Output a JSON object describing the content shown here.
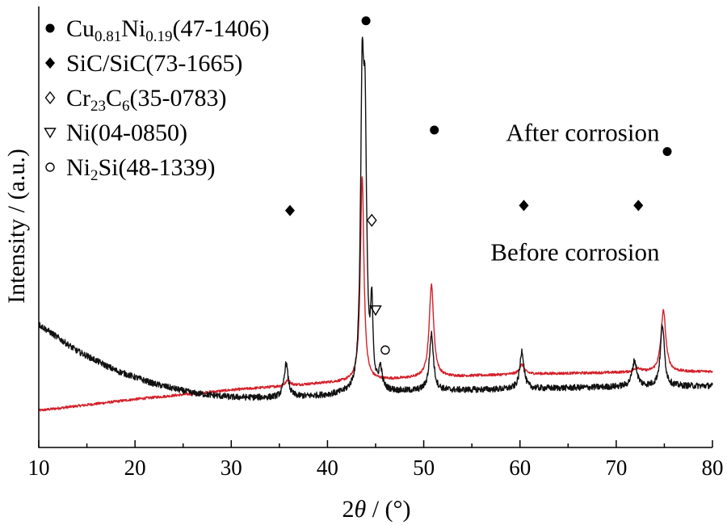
{
  "chart_data": {
    "type": "line",
    "xlabel_main": "2",
    "xlabel_theta": "θ",
    "xlabel_rest": " / (°)",
    "ylabel": "Intensity / (a.u.)",
    "xlim": [
      10,
      80
    ],
    "x_ticks": [
      10,
      20,
      30,
      40,
      50,
      60,
      70,
      80
    ],
    "grid": false,
    "legend_position": "top-left",
    "legend": [
      {
        "symbol": "filled-circle",
        "parts": [
          [
            "Cu",
            ""
          ],
          [
            "0.81",
            "sub"
          ],
          [
            "Ni",
            ""
          ],
          [
            "0.19",
            "sub"
          ],
          [
            "(47-1406)",
            ""
          ]
        ]
      },
      {
        "symbol": "filled-diamond",
        "parts": [
          [
            "SiC/SiC(73-1665)",
            ""
          ]
        ]
      },
      {
        "symbol": "open-diamond",
        "parts": [
          [
            "Cr",
            ""
          ],
          [
            "23",
            "sub"
          ],
          [
            "C",
            ""
          ],
          [
            "6",
            "sub"
          ],
          [
            "(35-0783)",
            ""
          ]
        ]
      },
      {
        "symbol": "open-triangle-down",
        "parts": [
          [
            "Ni(04-0850)",
            ""
          ]
        ]
      },
      {
        "symbol": "open-circle",
        "parts": [
          [
            "Ni",
            ""
          ],
          [
            "2",
            "sub"
          ],
          [
            "Si(48-1339)",
            ""
          ]
        ]
      }
    ],
    "series": [
      {
        "name": "After corrosion",
        "color": "#d4202a",
        "baseline": [
          [
            10,
            72
          ],
          [
            20,
            94
          ],
          [
            30,
            112
          ],
          [
            40,
            126
          ],
          [
            50,
            136
          ],
          [
            60,
            143
          ],
          [
            70,
            146
          ],
          [
            80,
            148
          ]
        ],
        "peaks": [
          {
            "x": 35.9,
            "height": 12,
            "width": 0.25
          },
          {
            "x": 43.6,
            "height": 400,
            "width": 0.22
          },
          {
            "x": 50.8,
            "height": 180,
            "width": 0.28
          },
          {
            "x": 60.2,
            "height": 18,
            "width": 0.3
          },
          {
            "x": 72.2,
            "height": 8,
            "width": 0.4
          },
          {
            "x": 74.9,
            "height": 120,
            "width": 0.3
          }
        ],
        "noise": 2.5
      },
      {
        "name": "Before corrosion",
        "color": "#111111",
        "baseline": [
          [
            10,
            240
          ],
          [
            14,
            188
          ],
          [
            18,
            150
          ],
          [
            22,
            124
          ],
          [
            26,
            106
          ],
          [
            30,
            98
          ],
          [
            34,
            97
          ],
          [
            38,
            99
          ],
          [
            42,
            103
          ],
          [
            46,
            107
          ],
          [
            50,
            110
          ],
          [
            55,
            112
          ],
          [
            60,
            114
          ],
          [
            65,
            116
          ],
          [
            70,
            118
          ],
          [
            75,
            119
          ],
          [
            80,
            120
          ]
        ],
        "peaks": [
          {
            "x": 35.7,
            "height": 65,
            "width": 0.25
          },
          {
            "x": 43.6,
            "height": 540,
            "width": 0.2
          },
          {
            "x": 43.9,
            "height": 460,
            "width": 0.2
          },
          {
            "x": 44.6,
            "height": 150,
            "width": 0.15
          },
          {
            "x": 45.5,
            "height": 40,
            "width": 0.2
          },
          {
            "x": 50.8,
            "height": 110,
            "width": 0.25
          },
          {
            "x": 60.2,
            "height": 75,
            "width": 0.25
          },
          {
            "x": 71.9,
            "height": 50,
            "width": 0.3
          },
          {
            "x": 74.8,
            "height": 120,
            "width": 0.25
          }
        ],
        "noise": 6
      }
    ],
    "annotations": [
      {
        "text": "After corrosion",
        "x": 74.5,
        "y": 598
      },
      {
        "text": "Before corrosion",
        "x": 74.5,
        "y": 365
      }
    ],
    "peak_markers": [
      {
        "symbol": "filled-circle",
        "x": 44.0,
        "y": 832
      },
      {
        "symbol": "filled-circle",
        "x": 51.1,
        "y": 619
      },
      {
        "symbol": "filled-circle",
        "x": 75.3,
        "y": 577
      },
      {
        "symbol": "filled-diamond",
        "x": 36.1,
        "y": 462
      },
      {
        "symbol": "filled-diamond",
        "x": 60.4,
        "y": 472
      },
      {
        "symbol": "filled-diamond",
        "x": 72.3,
        "y": 472
      },
      {
        "symbol": "open-diamond",
        "x": 44.6,
        "y": 443
      },
      {
        "symbol": "open-triangle-down",
        "x": 45.0,
        "y": 268
      },
      {
        "symbol": "open-circle",
        "x": 46.0,
        "y": 190
      }
    ]
  }
}
